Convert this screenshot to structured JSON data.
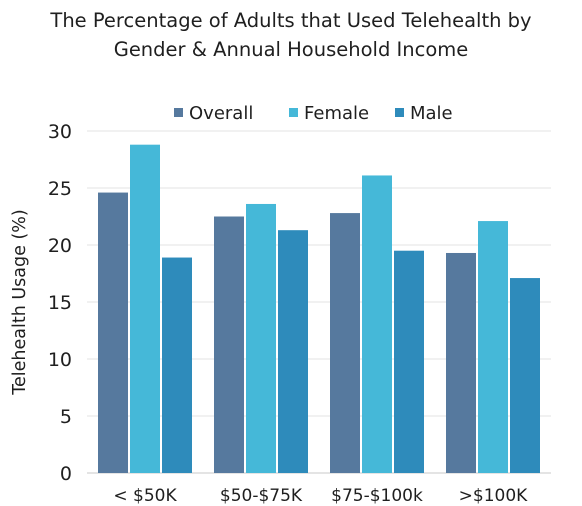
{
  "chart_data": {
    "type": "bar",
    "title_line1": "The Percentage of Adults that Used Telehealth by",
    "title_line2": "Gender & Annual Household Income",
    "xlabel": "",
    "ylabel": "Telehealth Usage (%)",
    "ylim": [
      0,
      30
    ],
    "yticks": [
      0,
      5,
      10,
      15,
      20,
      25,
      30
    ],
    "grid": true,
    "legend_position": "top-center",
    "categories": [
      "< $50K",
      "$50-$75K",
      "$75-$100k",
      ">$100K"
    ],
    "series": [
      {
        "name": "Overall",
        "color": "#56799e",
        "values": [
          24.6,
          22.5,
          22.8,
          19.3
        ]
      },
      {
        "name": "Female",
        "color": "#45b8d8",
        "values": [
          28.8,
          23.6,
          26.1,
          22.1
        ]
      },
      {
        "name": "Male",
        "color": "#2e8bbb",
        "values": [
          18.9,
          21.3,
          19.5,
          17.1
        ]
      }
    ]
  }
}
